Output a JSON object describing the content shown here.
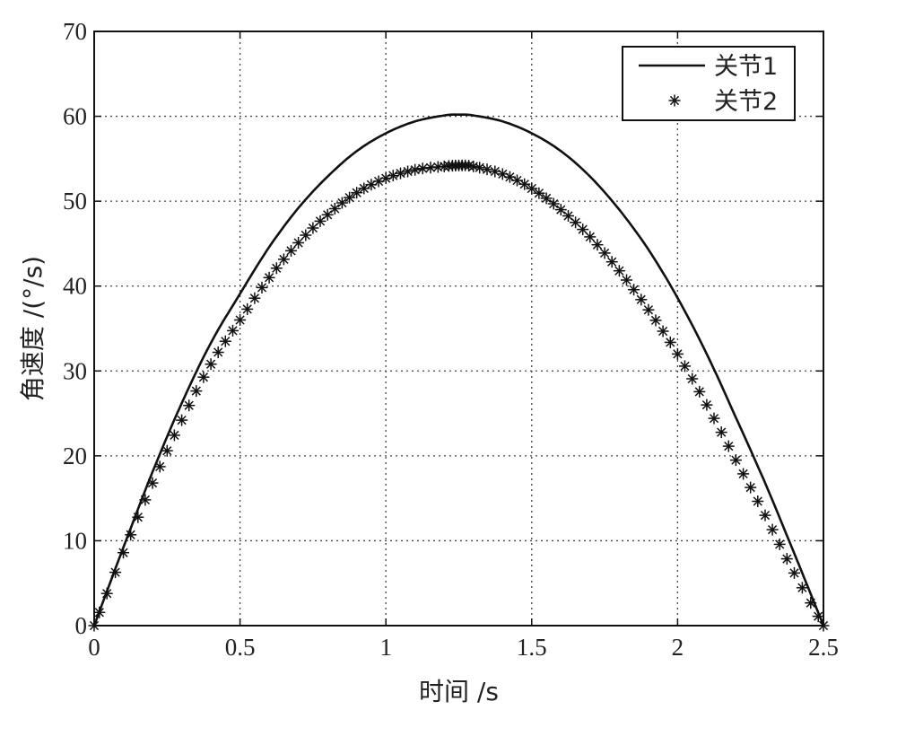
{
  "chart_data": {
    "type": "line",
    "title": "",
    "xlabel": "时间 /s",
    "ylabel": "角速度 /(°/s)",
    "xlim": [
      0,
      2.5
    ],
    "ylim": [
      0,
      70
    ],
    "xticks": [
      0,
      0.5,
      1,
      1.5,
      2,
      2.5
    ],
    "xtick_labels": [
      "0",
      "0.5",
      "1",
      "1.5",
      "2",
      "2.5"
    ],
    "yticks": [
      0,
      10,
      20,
      30,
      40,
      50,
      60,
      70
    ],
    "ytick_labels": [
      "0",
      "10",
      "20",
      "30",
      "40",
      "50",
      "60",
      "70"
    ],
    "grid": true,
    "legend_position": "top-right",
    "series": [
      {
        "name": "关节1",
        "style": "solid line",
        "color": "#111111",
        "x": [
          0,
          0.1,
          0.2,
          0.3,
          0.4,
          0.5,
          0.6,
          0.7,
          0.8,
          0.9,
          1.0,
          1.1,
          1.2,
          1.25,
          1.3,
          1.4,
          1.5,
          1.6,
          1.7,
          1.8,
          1.9,
          2.0,
          2.1,
          2.2,
          2.3,
          2.4,
          2.5
        ],
        "values": [
          0,
          9.2,
          18.1,
          26.2,
          33.3,
          39.1,
          44.6,
          49.2,
          52.9,
          55.9,
          58.0,
          59.4,
          60.1,
          60.2,
          60.1,
          59.4,
          58.0,
          55.9,
          52.9,
          49.0,
          44.3,
          38.6,
          32.0,
          24.5,
          16.8,
          8.5,
          0
        ]
      },
      {
        "name": "关节2",
        "style": "asterisk markers",
        "color": "#111111",
        "x": [
          0,
          0.1,
          0.2,
          0.3,
          0.4,
          0.5,
          0.6,
          0.7,
          0.8,
          0.9,
          1.0,
          1.1,
          1.2,
          1.25,
          1.3,
          1.4,
          1.5,
          1.6,
          1.7,
          1.8,
          1.9,
          2.0,
          2.1,
          2.2,
          2.3,
          2.4,
          2.5
        ],
        "values": [
          0,
          8.6,
          16.8,
          24.2,
          30.8,
          36.0,
          41.0,
          45.1,
          48.4,
          51.0,
          52.7,
          53.7,
          54.1,
          54.2,
          54.1,
          53.2,
          51.5,
          49.0,
          45.8,
          41.8,
          37.2,
          32.0,
          26.0,
          19.5,
          13.0,
          6.2,
          0
        ]
      }
    ]
  }
}
